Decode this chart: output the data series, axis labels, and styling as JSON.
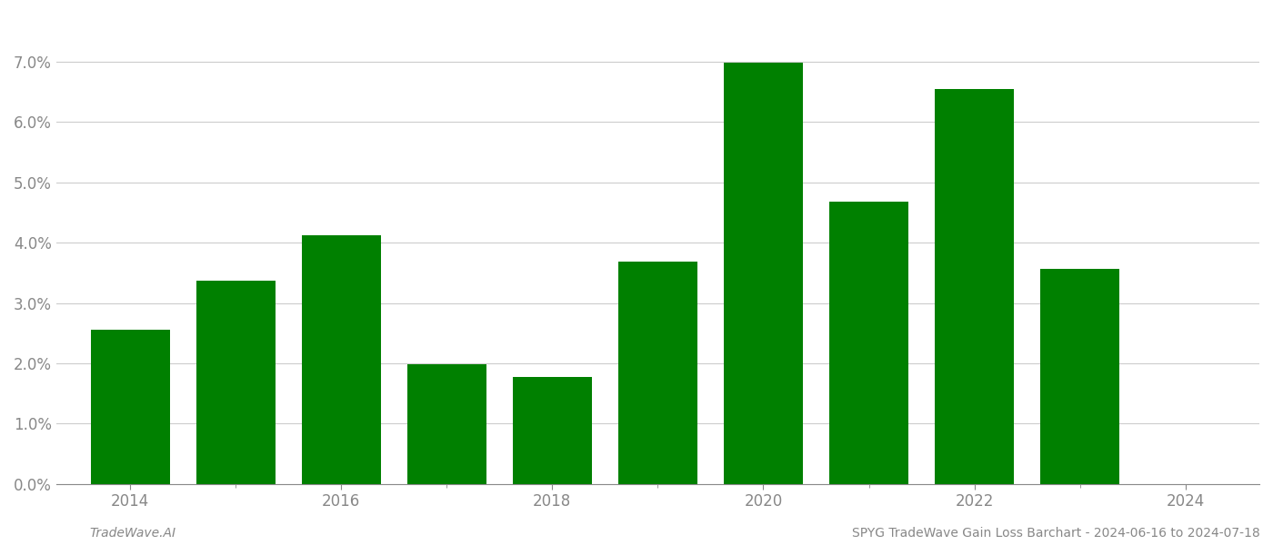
{
  "years": [
    2014,
    2015,
    2016,
    2017,
    2018,
    2019,
    2020,
    2021,
    2022,
    2023
  ],
  "values": [
    0.0255,
    0.0337,
    0.0413,
    0.0198,
    0.0177,
    0.0368,
    0.0698,
    0.0468,
    0.0655,
    0.0357
  ],
  "bar_color": "#008000",
  "background_color": "#ffffff",
  "footer_left": "TradeWave.AI",
  "footer_right": "SPYG TradeWave Gain Loss Barchart - 2024-06-16 to 2024-07-18",
  "ylim_min": 0.0,
  "ylim_max": 0.078,
  "yticks": [
    0.0,
    0.01,
    0.02,
    0.03,
    0.04,
    0.05,
    0.06,
    0.07
  ],
  "xtick_major": [
    2014,
    2016,
    2018,
    2020,
    2022,
    2024
  ],
  "xtick_minor": [
    2014,
    2015,
    2016,
    2017,
    2018,
    2019,
    2020,
    2021,
    2022,
    2023,
    2024
  ],
  "xlim_min": 2013.3,
  "xlim_max": 2024.7,
  "grid_color": "#cccccc",
  "tick_label_color": "#888888",
  "footer_font_size": 10,
  "bar_width": 0.75,
  "tick_label_size": 12
}
